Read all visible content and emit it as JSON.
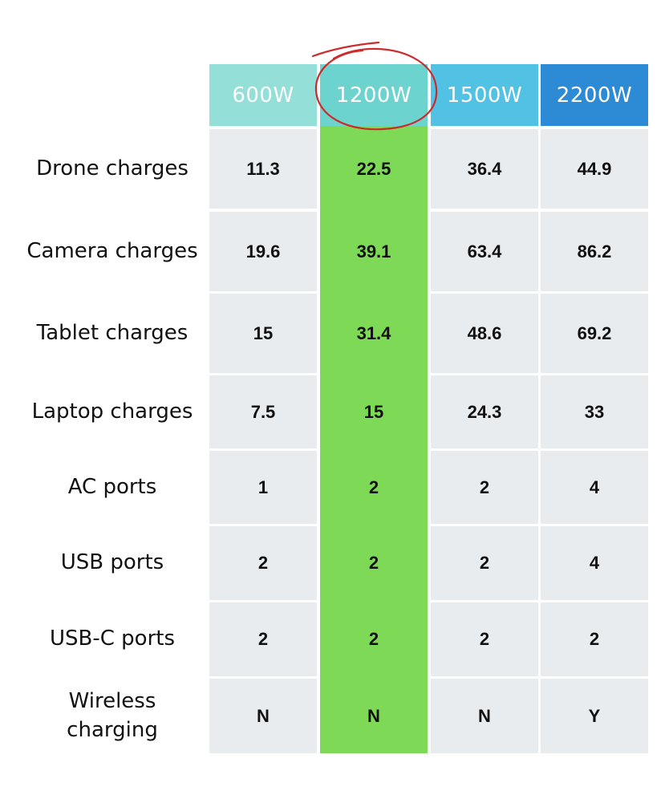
{
  "colors": {
    "header_600": "#94dfd8",
    "header_1200": "#6dd3cf",
    "header_1500": "#52c2e4",
    "header_2200": "#2d8ad4",
    "cell_bg": "#e9ecef",
    "highlight_bg": "#7ed957",
    "circle_annotation": "#cc2b2b"
  },
  "table": {
    "columns": [
      "600W",
      "1200W",
      "1500W",
      "2200W"
    ],
    "highlighted_column": "1200W",
    "rows": [
      {
        "label": "Drone charges",
        "values": [
          "11.3",
          "22.5",
          "36.4",
          "44.9"
        ]
      },
      {
        "label": "Camera charges",
        "values": [
          "19.6",
          "39.1",
          "63.4",
          "86.2"
        ]
      },
      {
        "label": "Tablet charges",
        "values": [
          "15",
          "31.4",
          "48.6",
          "69.2"
        ]
      },
      {
        "label": "Laptop charges",
        "values": [
          "7.5",
          "15",
          "24.3",
          "33"
        ]
      },
      {
        "label": "AC ports",
        "values": [
          "1",
          "2",
          "2",
          "4"
        ]
      },
      {
        "label": "USB ports",
        "values": [
          "2",
          "2",
          "2",
          "4"
        ]
      },
      {
        "label": "USB-C ports",
        "values": [
          "2",
          "2",
          "2",
          "2"
        ]
      },
      {
        "label": "Wireless\ncharging",
        "values": [
          "N",
          "N",
          "N",
          "Y"
        ]
      }
    ]
  }
}
